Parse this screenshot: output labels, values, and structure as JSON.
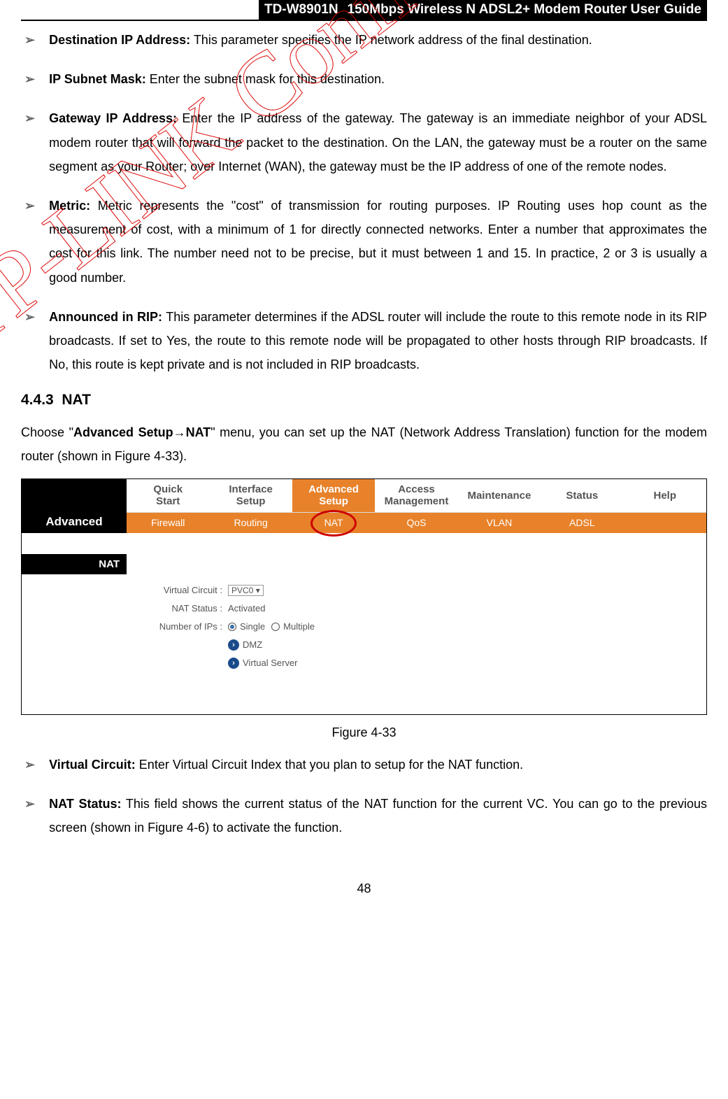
{
  "header": {
    "model": "TD-W8901N",
    "title": "150Mbps Wireless N ADSL2+ Modem Router User Guide"
  },
  "bullets_top": [
    {
      "term": "Destination IP Address:",
      "desc": " This parameter specifies the IP network address of the final destination."
    },
    {
      "term": "IP Subnet Mask:",
      "desc": " Enter the subnet mask for this destination."
    },
    {
      "term": "Gateway IP Address:",
      "desc": " Enter the IP address of the gateway. The gateway is an immediate neighbor of your ADSL modem router that will forward the packet to the destination. On the LAN, the gateway must be a router on the same segment as your Router; over Internet (WAN), the gateway must be the IP address of one of the remote nodes."
    },
    {
      "term": "Metric:",
      "desc": " Metric represents the \"cost\" of transmission for routing purposes. IP Routing uses hop count as the measurement of cost, with a minimum of 1 for directly connected networks. Enter a number that approximates the cost for this link. The number need not to be precise, but it must between 1 and 15. In practice, 2 or 3 is usually a good number."
    },
    {
      "term": "Announced in RIP:",
      "desc": " This parameter determines if the ADSL router will include the route to this remote node in its RIP broadcasts. If set to Yes, the route to this remote node will be propagated to other hosts through RIP broadcasts. If No, this route is kept private and is not included in RIP broadcasts."
    }
  ],
  "section": {
    "number": "4.4.3",
    "title": "NAT"
  },
  "nat_intro_pre": "Choose \"",
  "nat_intro_bold1": "Advanced Setup→NAT",
  "nat_intro_post": "\" menu, you can set up the NAT (Network Address Translation) function for the modem router (shown in Figure 4-33).",
  "screenshot": {
    "sidebar_label": "Advanced",
    "tabs": [
      "Quick Start",
      "Interface Setup",
      "Advanced Setup",
      "Access Management",
      "Maintenance",
      "Status",
      "Help"
    ],
    "active_tab_index": 2,
    "subtabs": [
      "Firewall",
      "Routing",
      "NAT",
      "QoS",
      "VLAN",
      "ADSL",
      ""
    ],
    "active_subtab_index": 2,
    "nat_label": "NAT",
    "rows": {
      "vc_label": "Virtual Circuit :",
      "vc_value": "PVC0",
      "status_label": "NAT Status :",
      "status_value": "Activated",
      "ips_label": "Number of IPs :",
      "ips_single": "Single",
      "ips_multiple": "Multiple",
      "dmz": "DMZ",
      "vserver": "Virtual Server"
    },
    "colors": {
      "orange": "#e8822a",
      "black": "#000000",
      "circle_red": "#cc0000",
      "icon_blue": "#1a4a8a"
    }
  },
  "figure_caption": "Figure 4-33",
  "bullets_bottom": [
    {
      "term": "Virtual Circuit:",
      "desc": " Enter Virtual Circuit Index that you plan to setup for the NAT function."
    },
    {
      "term": "NAT Status:",
      "desc": " This field shows the current status of the NAT function for the current VC. You can go to the previous screen (shown in Figure 4-6) to activate the function."
    }
  ],
  "page_number": "48",
  "watermark": "TP-LINK Confidential"
}
